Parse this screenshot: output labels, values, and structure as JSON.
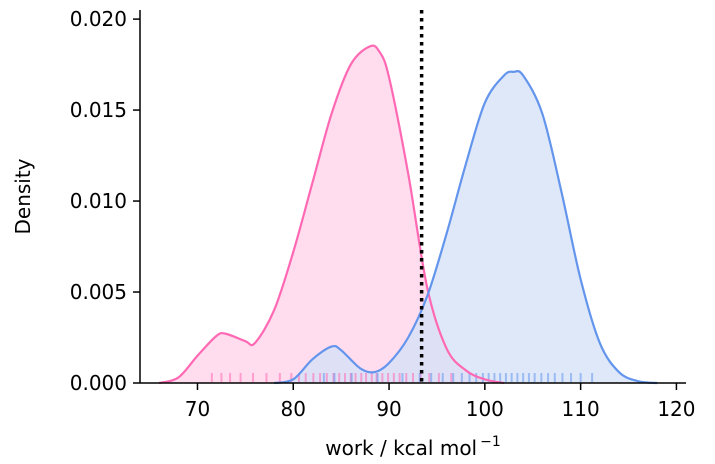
{
  "chart_data": {
    "type": "area",
    "title": "",
    "xlabel": "work / kcal mol",
    "xlabel_sup": "−1",
    "ylabel": "Density",
    "xlim": [
      64,
      121
    ],
    "ylim": [
      0,
      0.0205
    ],
    "x_ticks": [
      70,
      80,
      90,
      100,
      110,
      120
    ],
    "y_ticks": [
      0.0,
      0.005,
      0.01,
      0.015,
      0.02
    ],
    "y_tick_labels": [
      "0.000",
      "0.005",
      "0.010",
      "0.015",
      "0.020"
    ],
    "grid": false,
    "legend": "none",
    "vertical_line": {
      "x": 93.4,
      "style": "dotted",
      "color": "#000000"
    },
    "series": [
      {
        "color": "#ff69b4",
        "fill": "#ffd3ea",
        "points": [
          [
            66,
            0.0
          ],
          [
            68,
            0.0003
          ],
          [
            70,
            0.0015
          ],
          [
            72,
            0.0026
          ],
          [
            73,
            0.0027
          ],
          [
            75,
            0.0023
          ],
          [
            76,
            0.0022
          ],
          [
            78,
            0.004
          ],
          [
            80,
            0.0072
          ],
          [
            82,
            0.011
          ],
          [
            84,
            0.0148
          ],
          [
            86,
            0.0175
          ],
          [
            88,
            0.0185
          ],
          [
            89,
            0.0182
          ],
          [
            90,
            0.0168
          ],
          [
            92,
            0.0115
          ],
          [
            94,
            0.0052
          ],
          [
            96,
            0.0019
          ],
          [
            98,
            0.0007
          ],
          [
            100,
            0.0002
          ],
          [
            102,
            0.0
          ]
        ],
        "rug": [
          71.5,
          72.5,
          73.4,
          74.5,
          75.8,
          77.2,
          78.6,
          79.8,
          80.6,
          81.3,
          82.1,
          82.8,
          83.5,
          84.2,
          84.8,
          85.4,
          86.0,
          86.5,
          87.1,
          87.6,
          88.2,
          88.7,
          89.3,
          89.9,
          90.5,
          91.1,
          91.8,
          92.5,
          93.3,
          94.2,
          95.2,
          96.5
        ]
      },
      {
        "color": "#6495ed",
        "fill": "#d6e2f8",
        "points": [
          [
            78,
            0.0
          ],
          [
            80,
            0.0002
          ],
          [
            82,
            0.0013
          ],
          [
            84,
            0.002
          ],
          [
            85,
            0.0018
          ],
          [
            87,
            0.0008
          ],
          [
            88.5,
            0.0006
          ],
          [
            90,
            0.0011
          ],
          [
            92,
            0.0025
          ],
          [
            94,
            0.0048
          ],
          [
            96,
            0.0082
          ],
          [
            98,
            0.012
          ],
          [
            100,
            0.0154
          ],
          [
            102,
            0.0169
          ],
          [
            103,
            0.0171
          ],
          [
            104,
            0.0169
          ],
          [
            106,
            0.0148
          ],
          [
            108,
            0.0105
          ],
          [
            110,
            0.0057
          ],
          [
            112,
            0.0022
          ],
          [
            114,
            0.0006
          ],
          [
            116,
            0.0001
          ],
          [
            118,
            0.0
          ]
        ],
        "rug": [
          83.2,
          84.3,
          86.1,
          88.8,
          91.4,
          93.2,
          94.4,
          95.6,
          96.7,
          97.6,
          98.4,
          99.1,
          99.8,
          100.4,
          101.0,
          101.6,
          102.2,
          102.8,
          103.4,
          104.0,
          104.6,
          105.2,
          105.9,
          106.6,
          107.3,
          108.1,
          109.0,
          110.0,
          111.2
        ]
      }
    ]
  }
}
